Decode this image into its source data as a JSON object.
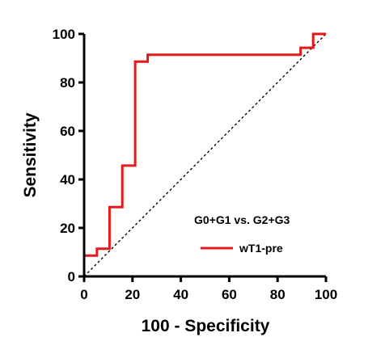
{
  "chart_data": {
    "type": "line",
    "xlabel": "100 - Specificity",
    "ylabel": "Sensitivity",
    "xlim": [
      0,
      100
    ],
    "ylim": [
      0,
      100
    ],
    "xticks": [
      "0",
      "20",
      "40",
      "60",
      "80",
      "100"
    ],
    "yticks": [
      "0",
      "20",
      "40",
      "60",
      "80",
      "100"
    ],
    "grid": false,
    "annotation": "G0+G1 vs. G2+G3",
    "legend_position": "bottom-right",
    "series": [
      {
        "name": "wT1-pre",
        "color": "#e31a1c",
        "x": [
          0,
          0,
          5.3,
          5.3,
          10.5,
          10.5,
          15.8,
          15.8,
          21.1,
          21.1,
          26.3,
          26.3,
          89.5,
          89.5,
          94.7,
          94.7,
          100
        ],
        "y": [
          0,
          8.6,
          8.6,
          11.4,
          11.4,
          28.6,
          28.6,
          45.7,
          45.7,
          88.6,
          88.6,
          91.4,
          91.4,
          94.3,
          94.3,
          100,
          100
        ]
      }
    ],
    "reference_line": {
      "style": "dashed",
      "color": "#000000",
      "x": [
        0,
        100
      ],
      "y": [
        0,
        100
      ]
    }
  }
}
